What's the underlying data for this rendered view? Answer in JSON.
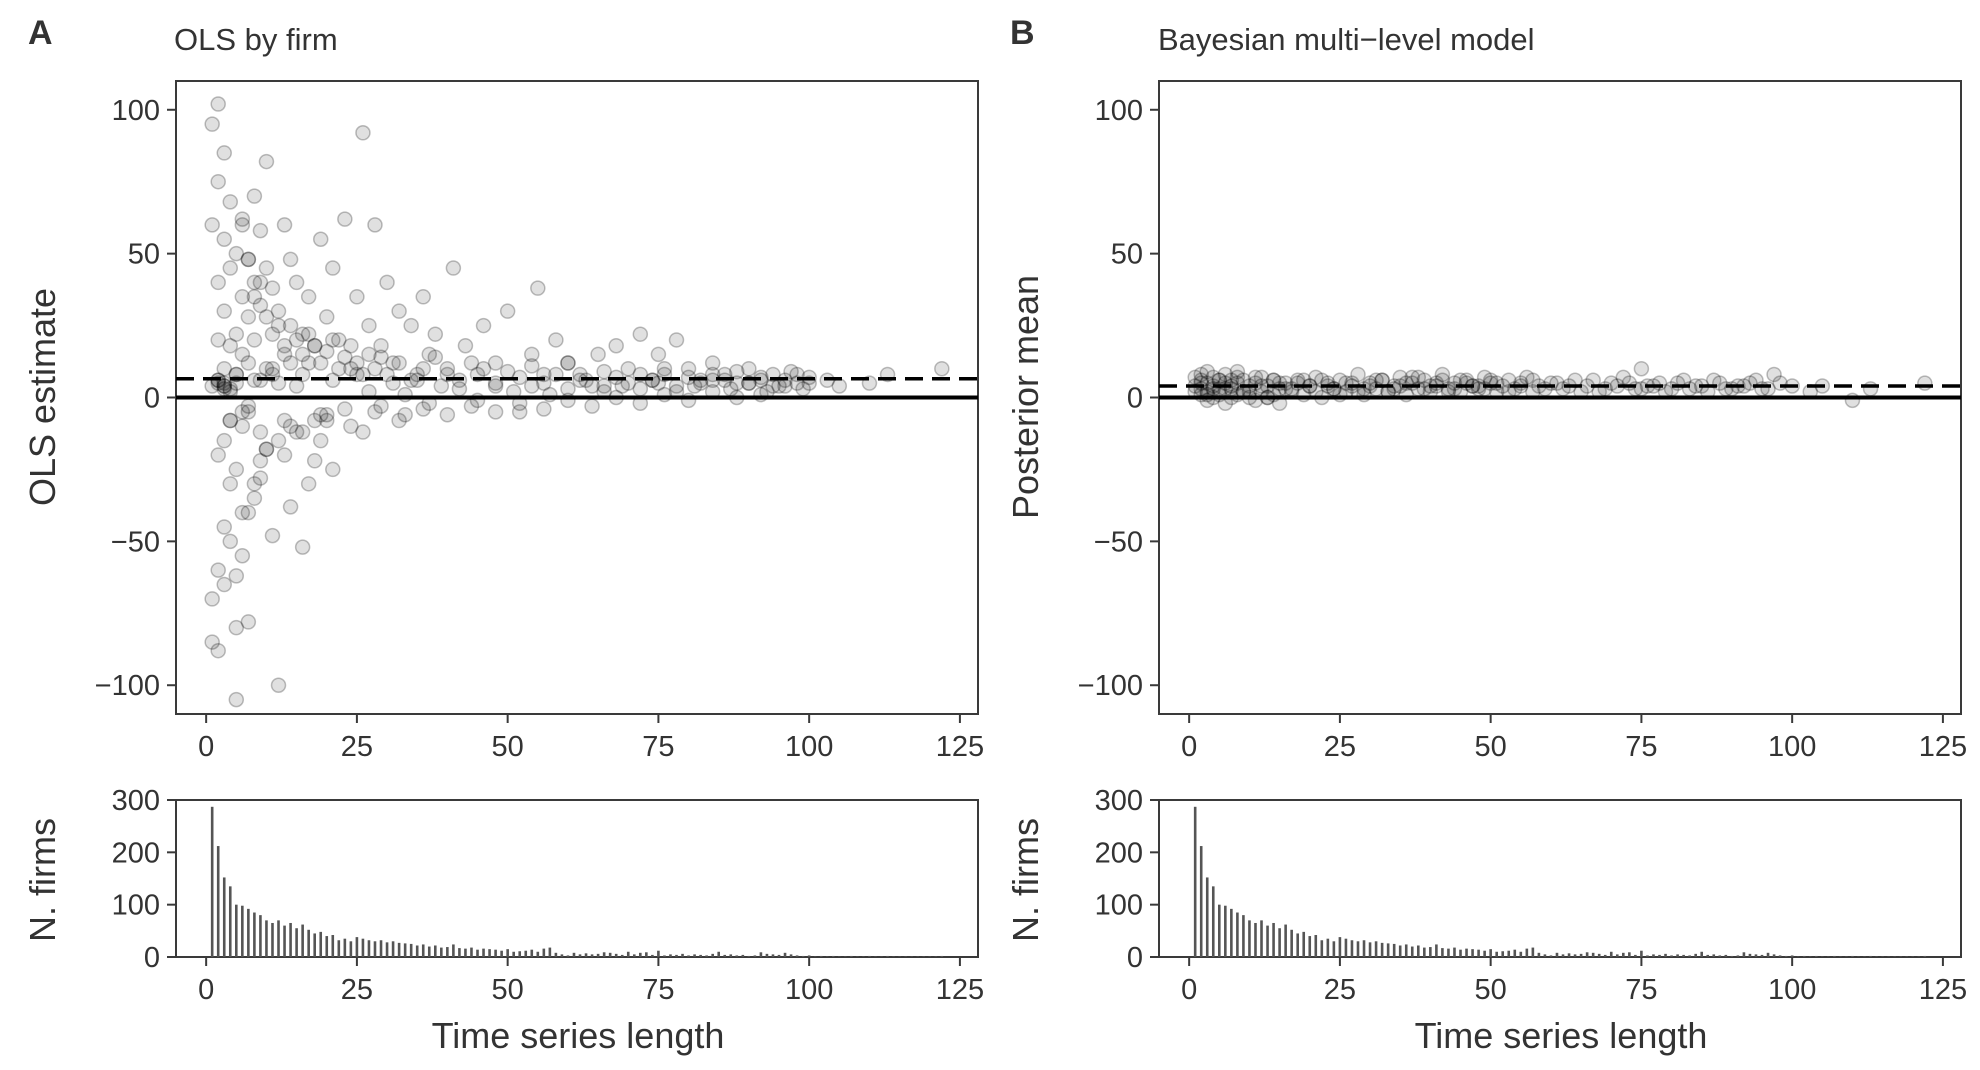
{
  "chart_data": [
    {
      "panel": "A",
      "type": "scatter",
      "title": "OLS by firm",
      "ylabel": "OLS estimate",
      "xlabel": "",
      "xlim": [
        -5,
        128
      ],
      "ylim": [
        -110,
        110
      ],
      "xticks": [
        0,
        25,
        50,
        75,
        100,
        125
      ],
      "yticks": [
        100,
        50,
        0,
        -50,
        -100
      ],
      "ytick_labels": [
        "100",
        "50",
        "0",
        "−50",
        "−100"
      ],
      "reference_lines": [
        {
          "style": "solid",
          "y": 0
        },
        {
          "style": "dashed",
          "y": 6.5
        }
      ],
      "grid": false,
      "marker_color": "#000000",
      "marker_opacity": 0.12,
      "points_x": [
        1,
        1,
        1,
        1,
        2,
        2,
        2,
        2,
        2,
        2,
        2,
        3,
        3,
        3,
        3,
        3,
        3,
        3,
        4,
        4,
        4,
        4,
        4,
        4,
        5,
        5,
        5,
        5,
        5,
        5,
        6,
        6,
        6,
        6,
        6,
        7,
        7,
        7,
        7,
        7,
        8,
        8,
        8,
        8,
        9,
        9,
        9,
        9,
        10,
        10,
        10,
        10,
        11,
        11,
        11,
        12,
        12,
        12,
        13,
        13,
        13,
        14,
        14,
        14,
        15,
        15,
        16,
        16,
        16,
        17,
        17,
        18,
        18,
        19,
        19,
        20,
        20,
        21,
        21,
        22,
        23,
        24,
        25,
        26,
        26,
        27,
        28,
        29,
        30,
        31,
        32,
        33,
        34,
        35,
        36,
        37,
        38,
        40,
        41,
        43,
        45,
        46,
        48,
        50,
        52,
        54,
        55,
        56,
        58,
        60,
        62,
        65,
        66,
        68,
        70,
        72,
        74,
        75,
        76,
        78,
        80,
        82,
        84,
        86,
        88,
        90,
        92,
        94,
        95,
        97,
        98,
        100,
        103,
        105,
        110,
        113,
        122,
        2,
        3,
        4,
        5,
        6,
        7,
        8,
        9,
        10,
        11,
        12,
        13,
        14,
        15,
        16,
        17,
        18,
        19,
        20,
        21,
        22,
        23,
        24,
        25,
        26,
        27,
        28,
        29,
        30,
        32,
        34,
        36,
        38,
        40,
        42,
        44,
        46,
        48,
        50,
        52,
        54,
        56,
        58,
        60,
        62,
        64,
        66,
        68,
        70,
        72,
        74,
        76,
        78,
        80,
        82,
        84,
        86,
        88,
        90,
        92,
        94,
        96,
        98,
        100,
        1,
        2,
        3,
        3,
        4,
        5,
        6,
        7,
        8,
        9,
        11,
        13,
        15,
        17,
        19,
        21,
        23,
        25,
        27,
        29,
        31,
        33,
        35,
        37,
        39,
        42,
        45,
        48,
        51,
        54,
        57,
        60,
        63,
        66,
        69,
        72,
        75,
        78,
        81,
        84,
        87,
        90,
        93,
        96,
        99,
        2,
        3,
        4,
        5,
        6,
        7,
        8,
        9,
        10,
        12,
        14,
        16,
        18,
        20,
        24,
        28,
        32,
        36,
        40,
        44,
        48,
        52,
        56,
        60,
        64,
        68,
        72,
        76,
        80,
        84,
        88,
        92,
        96
      ],
      "points_y": [
        -85,
        -70,
        60,
        95,
        -88,
        -60,
        40,
        75,
        102,
        20,
        -20,
        -65,
        -45,
        30,
        55,
        85,
        10,
        -15,
        -50,
        -30,
        18,
        45,
        68,
        -8,
        -105,
        -62,
        22,
        50,
        8,
        -25,
        -40,
        15,
        35,
        62,
        -10,
        -78,
        12,
        28,
        48,
        -5,
        -35,
        20,
        40,
        70,
        -28,
        6,
        32,
        58,
        -18,
        10,
        45,
        82,
        -48,
        8,
        38,
        -100,
        5,
        25,
        60,
        -20,
        15,
        48,
        -38,
        12,
        40,
        -12,
        22,
        -52,
        8,
        35,
        -30,
        18,
        -22,
        55,
        -15,
        28,
        -8,
        45,
        -25,
        20,
        62,
        10,
        35,
        -12,
        92,
        25,
        60,
        18,
        40,
        12,
        30,
        -6,
        25,
        8,
        35,
        15,
        22,
        10,
        45,
        18,
        8,
        25,
        12,
        30,
        -5,
        15,
        38,
        8,
        20,
        12,
        8,
        15,
        4,
        18,
        10,
        22,
        6,
        15,
        8,
        20,
        10,
        6,
        12,
        8,
        5,
        10,
        6,
        8,
        4,
        9,
        5,
        7,
        6,
        4,
        5,
        8,
        10,
        6,
        4,
        -8,
        5,
        60,
        48,
        35,
        40,
        28,
        22,
        30,
        18,
        25,
        20,
        15,
        22,
        18,
        12,
        16,
        20,
        10,
        14,
        18,
        12,
        8,
        15,
        10,
        14,
        8,
        12,
        6,
        10,
        14,
        8,
        6,
        12,
        10,
        4,
        9,
        7,
        11,
        5,
        8,
        12,
        6,
        4,
        9,
        7,
        5,
        8,
        6,
        10,
        4,
        7,
        5,
        8,
        6,
        9,
        5,
        7,
        4,
        6,
        8,
        5,
        4,
        6,
        5,
        3,
        2,
        8,
        -5,
        -3,
        6,
        -12,
        10,
        -8,
        4,
        12,
        -6,
        6,
        -4,
        8,
        2,
        -3,
        5,
        1,
        6,
        -2,
        4,
        3,
        -1,
        5,
        2,
        4,
        1,
        3,
        6,
        2,
        4,
        3,
        5,
        2,
        4,
        6,
        3,
        5,
        2,
        4,
        3,
        5,
        4,
        3,
        -80,
        -55,
        -40,
        -30,
        -22,
        -18,
        -15,
        -10,
        -12,
        -8,
        -6,
        -10,
        -5,
        -8,
        -4,
        -6,
        -3,
        -5,
        -2,
        -4,
        -1,
        -3,
        0,
        -2,
        1,
        -1,
        2,
        0,
        1
      ]
    },
    {
      "panel": "B",
      "type": "scatter",
      "title": "Bayesian multi−level model",
      "ylabel": "Posterior mean",
      "xlabel": "",
      "xlim": [
        -5,
        128
      ],
      "ylim": [
        -110,
        110
      ],
      "xticks": [
        0,
        25,
        50,
        75,
        100,
        125
      ],
      "yticks": [
        100,
        50,
        0,
        -50,
        -100
      ],
      "ytick_labels": [
        "100",
        "50",
        "0",
        "−50",
        "−100"
      ],
      "reference_lines": [
        {
          "style": "solid",
          "y": 0
        },
        {
          "style": "dashed",
          "y": 4
        }
      ],
      "grid": false,
      "marker_color": "#000000",
      "marker_opacity": 0.12,
      "points_x": [
        1,
        1,
        1,
        2,
        2,
        2,
        2,
        3,
        3,
        3,
        3,
        4,
        4,
        4,
        5,
        5,
        5,
        6,
        6,
        6,
        7,
        7,
        7,
        8,
        8,
        8,
        9,
        9,
        10,
        10,
        11,
        11,
        12,
        12,
        13,
        13,
        14,
        14,
        15,
        15,
        16,
        17,
        18,
        19,
        20,
        21,
        22,
        23,
        24,
        25,
        26,
        27,
        28,
        29,
        30,
        31,
        32,
        33,
        34,
        35,
        36,
        37,
        38,
        39,
        40,
        41,
        42,
        43,
        44,
        45,
        46,
        47,
        48,
        49,
        50,
        51,
        52,
        53,
        54,
        55,
        56,
        57,
        58,
        60,
        62,
        64,
        66,
        68,
        70,
        72,
        74,
        75,
        76,
        78,
        80,
        82,
        84,
        86,
        88,
        90,
        92,
        94,
        96,
        98,
        100,
        103,
        105,
        110,
        113,
        122,
        3,
        5,
        7,
        9,
        11,
        13,
        15,
        17,
        19,
        21,
        23,
        25,
        27,
        29,
        31,
        33,
        35,
        37,
        39,
        41,
        43,
        45,
        47,
        49,
        51,
        53,
        55,
        57,
        59,
        61,
        63,
        65,
        67,
        69,
        71,
        73,
        75,
        77,
        79,
        81,
        83,
        85,
        87,
        89,
        91,
        93,
        95,
        97,
        2,
        4,
        6,
        8,
        10,
        12,
        14,
        16,
        18,
        20,
        22,
        24,
        26,
        28,
        30,
        32,
        34,
        36,
        38,
        40,
        42,
        44,
        46,
        48,
        50,
        52,
        54,
        56
      ],
      "points_y": [
        2,
        4,
        7,
        1,
        3,
        5,
        8,
        -1,
        2,
        5,
        9,
        0,
        4,
        7,
        1,
        3,
        6,
        -2,
        3,
        8,
        0,
        4,
        6,
        1,
        5,
        9,
        2,
        6,
        0,
        4,
        -1,
        5,
        2,
        7,
        0,
        4,
        1,
        6,
        -2,
        3,
        5,
        2,
        6,
        1,
        4,
        7,
        0,
        5,
        3,
        6,
        2,
        4,
        8,
        1,
        5,
        3,
        6,
        2,
        4,
        7,
        1,
        5,
        3,
        6,
        2,
        4,
        8,
        3,
        5,
        2,
        6,
        4,
        3,
        7,
        5,
        2,
        4,
        6,
        3,
        5,
        7,
        2,
        4,
        5,
        3,
        6,
        4,
        2,
        5,
        7,
        3,
        10,
        4,
        5,
        3,
        6,
        4,
        2,
        5,
        3,
        4,
        6,
        3,
        5,
        4,
        2,
        4,
        -1,
        3,
        5,
        1,
        6,
        3,
        2,
        7,
        0,
        5,
        3,
        6,
        2,
        4,
        1,
        5,
        3,
        6,
        2,
        4,
        7,
        3,
        5,
        2,
        6,
        4,
        3,
        5,
        2,
        4,
        6,
        3,
        5,
        4,
        2,
        6,
        3,
        4,
        5,
        3,
        4,
        2,
        5,
        3,
        4,
        6,
        3,
        4,
        5,
        3,
        8,
        6,
        3,
        5,
        7,
        2,
        4,
        6,
        3,
        5,
        4,
        6,
        3,
        5,
        2,
        4,
        6,
        3,
        5,
        7,
        4,
        6,
        3,
        5,
        4,
        6
      ]
    },
    {
      "panel": "A-hist",
      "type": "bar",
      "title": "",
      "ylabel": "N. firms",
      "xlabel": "Time series length",
      "xlim": [
        -5,
        128
      ],
      "ylim": [
        0,
        300
      ],
      "xticks": [
        0,
        25,
        50,
        75,
        100,
        125
      ],
      "yticks": [
        0,
        100,
        200,
        300
      ],
      "categories": [
        1,
        2,
        3,
        4,
        5,
        6,
        7,
        8,
        9,
        10,
        11,
        12,
        13,
        14,
        15,
        16,
        17,
        18,
        19,
        20,
        21,
        22,
        23,
        24,
        25,
        26,
        27,
        28,
        29,
        30,
        31,
        32,
        33,
        34,
        35,
        36,
        37,
        38,
        39,
        40,
        41,
        42,
        43,
        44,
        45,
        46,
        47,
        48,
        49,
        50,
        51,
        52,
        53,
        54,
        55,
        56,
        57,
        58,
        59,
        60,
        61,
        62,
        63,
        64,
        65,
        66,
        67,
        68,
        69,
        70,
        71,
        72,
        73,
        74,
        75,
        76,
        77,
        78,
        79,
        80,
        81,
        82,
        83,
        84,
        85,
        86,
        87,
        88,
        89,
        90,
        91,
        92,
        93,
        94,
        95,
        96,
        97,
        98,
        99,
        100,
        101,
        102,
        103,
        104,
        105,
        106,
        107,
        108,
        109,
        110,
        111,
        112,
        113,
        114,
        115,
        116,
        117,
        118,
        119,
        120,
        121,
        122
      ],
      "values": [
        287,
        212,
        152,
        135,
        100,
        98,
        92,
        85,
        80,
        70,
        65,
        70,
        60,
        65,
        55,
        62,
        52,
        45,
        48,
        40,
        42,
        32,
        35,
        30,
        38,
        35,
        32,
        30,
        32,
        28,
        30,
        27,
        26,
        25,
        22,
        24,
        20,
        22,
        18,
        19,
        24,
        17,
        16,
        18,
        14,
        16,
        15,
        14,
        12,
        15,
        10,
        11,
        12,
        14,
        10,
        16,
        18,
        8,
        5,
        3,
        8,
        5,
        7,
        5,
        6,
        9,
        8,
        6,
        4,
        10,
        5,
        8,
        9,
        4,
        12,
        3,
        5,
        4,
        6,
        3,
        5,
        4,
        3,
        6,
        10,
        4,
        5,
        3,
        4,
        2,
        3,
        9,
        6,
        5,
        4,
        8,
        5,
        3,
        2,
        3,
        1,
        2,
        1,
        2,
        1,
        1,
        2,
        1,
        1,
        2,
        1,
        1,
        2,
        1,
        1,
        1,
        1,
        1,
        1,
        1,
        1,
        2
      ]
    },
    {
      "panel": "B-hist",
      "type": "bar",
      "title": "",
      "ylabel": "N. firms",
      "xlabel": "Time series length",
      "xlim": [
        -5,
        128
      ],
      "ylim": [
        0,
        300
      ],
      "xticks": [
        0,
        25,
        50,
        75,
        100,
        125
      ],
      "yticks": [
        0,
        100,
        200,
        300
      ],
      "same_as": "A-hist"
    }
  ],
  "panel_letters": {
    "a": "A",
    "b": "B"
  }
}
